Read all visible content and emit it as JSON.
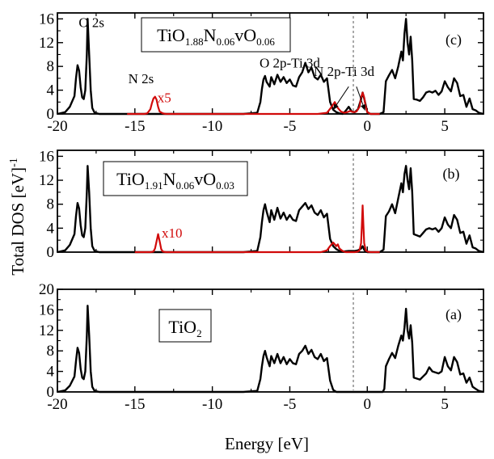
{
  "chart_data": {
    "type": "line",
    "xlabel": "Energy [eV]",
    "ylabel": "Total DOS [eV]",
    "ylabel_superscript": "-1",
    "xlim": [
      -20,
      7.5
    ],
    "xticks": [
      -20,
      -15,
      -10,
      -5,
      0,
      5
    ],
    "fermi_level": -0.9,
    "colors": {
      "total": "#000000",
      "nitrogen": "#d10a0a"
    },
    "panels": [
      {
        "id": "c",
        "tag": "(c)",
        "formula": [
          {
            "t": "TiO",
            "sub": false
          },
          {
            "t": "1.88",
            "sub": true
          },
          {
            "t": "N",
            "sub": false
          },
          {
            "t": "0.06",
            "sub": true
          },
          {
            "t": "vO",
            "sub": false
          },
          {
            "t": "0.06",
            "sub": true
          }
        ],
        "ylim": [
          0,
          17
        ],
        "yticks": [
          0,
          4,
          8,
          12,
          16
        ],
        "yminor": [
          2,
          6,
          10,
          14
        ],
        "annotations": [
          {
            "text": "O 2s",
            "x": -17.8,
            "y": 14.6,
            "color": "#000000"
          },
          {
            "text": "N 2s",
            "x": -14.6,
            "y": 5.2,
            "color": "#000000"
          },
          {
            "text": "x5",
            "x": -13.1,
            "y": 2.0,
            "color": "#d10a0a"
          },
          {
            "text": "O 2p-Ti 3d",
            "x": -5.0,
            "y": 7.8,
            "color": "#000000"
          },
          {
            "text": "N 2p-Ti 3d",
            "x": -1.5,
            "y": 6.4,
            "color": "#000000"
          }
        ],
        "arrows": [
          {
            "from": [
              -1.2,
              4.6
            ],
            "to": [
              -2.2,
              0.7
            ]
          },
          {
            "from": [
              -0.7,
              4.6
            ],
            "to": [
              -0.15,
              0.6
            ]
          }
        ],
        "total_dos": {
          "x": [
            -20,
            -19.5,
            -19.2,
            -18.9,
            -18.8,
            -18.7,
            -18.6,
            -18.5,
            -18.4,
            -18.3,
            -18.2,
            -18.1,
            -18.05,
            -17.95,
            -17.85,
            -17.75,
            -17.6,
            -17.3,
            -16,
            -10,
            -8,
            -7.1,
            -6.9,
            -6.8,
            -6.7,
            -6.6,
            -6.5,
            -6.3,
            -6.2,
            -6.0,
            -5.8,
            -5.6,
            -5.4,
            -5.2,
            -5.0,
            -4.8,
            -4.6,
            -4.4,
            -4.2,
            -4.0,
            -3.8,
            -3.6,
            -3.4,
            -3.2,
            -3.0,
            -2.8,
            -2.6,
            -2.4,
            -2.2,
            -2.0,
            -1.8,
            -1.6,
            -1.4,
            -1.2,
            -1.0,
            -0.8,
            -0.6,
            -0.4,
            -0.3,
            -0.2,
            -0.1,
            0.0,
            0.2,
            0.8,
            1.05,
            1.2,
            1.4,
            1.6,
            1.8,
            2.0,
            2.2,
            2.3,
            2.4,
            2.5,
            2.6,
            2.7,
            2.8,
            2.9,
            3.0,
            3.2,
            3.4,
            3.6,
            3.8,
            4.0,
            4.2,
            4.4,
            4.6,
            4.8,
            5.0,
            5.2,
            5.4,
            5.6,
            5.8,
            6.0,
            6.2,
            6.4,
            6.6,
            6.8,
            7.0,
            7.2,
            7.5
          ],
          "y": [
            0,
            0.3,
            1.2,
            3.0,
            6.0,
            8.2,
            7.3,
            4.5,
            2.8,
            2.5,
            4.0,
            10.0,
            16.0,
            10.0,
            4.0,
            1.0,
            0.2,
            0,
            0,
            0,
            0,
            0.2,
            2.0,
            4.2,
            5.8,
            6.4,
            5.4,
            4.6,
            6.2,
            5.0,
            6.6,
            5.4,
            6.2,
            5.2,
            5.8,
            4.8,
            4.6,
            6.2,
            7.0,
            8.6,
            7.0,
            7.8,
            6.2,
            5.8,
            6.6,
            5.4,
            6.0,
            2.0,
            0.7,
            0.3,
            0.1,
            0.0,
            0.5,
            1.2,
            0.4,
            0.3,
            0.8,
            2.5,
            3.6,
            2.6,
            1.5,
            0.3,
            0,
            0,
            0.3,
            5.5,
            6.5,
            7.4,
            6.0,
            8.0,
            10.5,
            9.0,
            13.5,
            16.0,
            12.0,
            10.0,
            13.0,
            9.0,
            2.5,
            2.4,
            2.2,
            2.8,
            3.6,
            3.8,
            3.6,
            3.9,
            3.2,
            3.8,
            5.5,
            4.5,
            3.8,
            6.0,
            5.2,
            3.0,
            3.2,
            1.2,
            2.6,
            0.8,
            0.6,
            0.2,
            0
          ]
        },
        "n_dos": {
          "x": [
            -15.5,
            -14.4,
            -14.2,
            -14.0,
            -13.9,
            -13.8,
            -13.7,
            -13.6,
            -13.5,
            -13.4,
            -13.2,
            -13.0,
            -12.0,
            -3.2,
            -2.6,
            -2.3,
            -2.1,
            -1.9,
            -1.7,
            -1.5,
            -1.3,
            -1.1,
            -0.9,
            -0.7,
            -0.5,
            -0.4,
            -0.3,
            -0.2,
            -0.1,
            0.0,
            0.2,
            0.8
          ],
          "y": [
            0,
            0,
            0.1,
            0.8,
            1.8,
            2.6,
            2.9,
            2.4,
            1.2,
            0.4,
            0.1,
            0,
            0,
            0,
            0.2,
            1.2,
            2.0,
            1.0,
            0.4,
            0.2,
            0.3,
            0.5,
            0.3,
            0.4,
            1.2,
            2.8,
            3.6,
            2.8,
            1.2,
            0.3,
            0,
            0
          ]
        }
      },
      {
        "id": "b",
        "tag": "(b)",
        "formula": [
          {
            "t": "TiO",
            "sub": false
          },
          {
            "t": "1.91",
            "sub": true
          },
          {
            "t": "N",
            "sub": false
          },
          {
            "t": "0.06",
            "sub": true
          },
          {
            "t": "vO",
            "sub": false
          },
          {
            "t": "0.03",
            "sub": true
          }
        ],
        "ylim": [
          0,
          17
        ],
        "yticks": [
          0,
          4,
          8,
          12,
          16
        ],
        "yminor": [
          2,
          6,
          10,
          14
        ],
        "annotations": [
          {
            "text": "x10",
            "x": -12.6,
            "y": 2.4,
            "color": "#d10a0a"
          }
        ],
        "arrows": [],
        "total_dos": {
          "x": [
            -20,
            -19.5,
            -19.2,
            -18.9,
            -18.8,
            -18.7,
            -18.6,
            -18.5,
            -18.4,
            -18.3,
            -18.2,
            -18.1,
            -18.05,
            -17.95,
            -17.85,
            -17.75,
            -17.6,
            -17.3,
            -16,
            -10,
            -8,
            -7.1,
            -6.9,
            -6.8,
            -6.7,
            -6.6,
            -6.5,
            -6.3,
            -6.2,
            -6.0,
            -5.8,
            -5.6,
            -5.4,
            -5.2,
            -5.0,
            -4.8,
            -4.6,
            -4.4,
            -4.2,
            -4.0,
            -3.8,
            -3.6,
            -3.4,
            -3.2,
            -3.0,
            -2.8,
            -2.6,
            -2.4,
            -2.2,
            -2.0,
            -1.8,
            -1.6,
            -1.2,
            -0.8,
            -0.6,
            -0.4,
            -0.3,
            -0.2,
            -0.1,
            0.0,
            0.2,
            0.8,
            1.05,
            1.2,
            1.4,
            1.6,
            1.8,
            2.0,
            2.2,
            2.3,
            2.4,
            2.5,
            2.6,
            2.7,
            2.8,
            2.9,
            3.0,
            3.2,
            3.4,
            3.6,
            3.8,
            4.0,
            4.2,
            4.4,
            4.6,
            4.8,
            5.0,
            5.2,
            5.4,
            5.6,
            5.8,
            6.0,
            6.2,
            6.4,
            6.6,
            6.8,
            7.0,
            7.2,
            7.5
          ],
          "y": [
            0,
            0.3,
            1.2,
            3.0,
            6.0,
            8.2,
            7.3,
            4.5,
            2.8,
            2.5,
            4.0,
            10.0,
            14.4,
            10.0,
            4.0,
            1.0,
            0.2,
            0,
            0,
            0,
            0,
            0.2,
            2.5,
            5.0,
            7.0,
            8.0,
            6.8,
            5.0,
            7.0,
            5.4,
            7.4,
            5.6,
            6.6,
            5.4,
            6.2,
            5.4,
            5.2,
            7.0,
            7.6,
            8.2,
            7.2,
            7.8,
            6.6,
            6.2,
            7.0,
            5.8,
            6.4,
            2.2,
            1.0,
            0.5,
            0.2,
            0.1,
            0.2,
            0.2,
            0.3,
            0.6,
            1.0,
            0.4,
            0.1,
            0,
            0,
            0,
            0.4,
            6.0,
            6.8,
            8.0,
            6.5,
            9.0,
            11.5,
            10.0,
            13.0,
            14.4,
            12.0,
            10.5,
            14.0,
            10.0,
            3.0,
            2.8,
            2.6,
            3.2,
            3.8,
            4.0,
            3.8,
            4.0,
            3.4,
            4.0,
            5.8,
            4.6,
            4.0,
            6.2,
            5.4,
            3.2,
            3.4,
            1.4,
            2.8,
            0.8,
            0.6,
            0.2,
            0
          ]
        },
        "n_dos": {
          "x": [
            -15.0,
            -14.0,
            -13.8,
            -13.7,
            -13.6,
            -13.5,
            -13.4,
            -13.3,
            -13.2,
            -13.0,
            -12.0,
            -3.0,
            -2.6,
            -2.4,
            -2.2,
            -2.0,
            -1.9,
            -1.8,
            -1.6,
            -1.4,
            -1.2,
            -1.0,
            -0.8,
            -0.6,
            -0.5,
            -0.4,
            -0.35,
            -0.3,
            -0.25,
            -0.2,
            -0.1,
            0.0,
            0.2,
            0.8
          ],
          "y": [
            0,
            0,
            0.1,
            0.6,
            1.8,
            3.0,
            1.8,
            0.5,
            0.1,
            0,
            0,
            0,
            0.3,
            1.0,
            1.6,
            1.0,
            1.3,
            0.6,
            0.2,
            0,
            0,
            0,
            0,
            0.1,
            0.3,
            1.5,
            4.5,
            7.8,
            4.5,
            1.5,
            0.3,
            0.1,
            0,
            0
          ]
        }
      },
      {
        "id": "a",
        "tag": "(a)",
        "formula": [
          {
            "t": "TiO",
            "sub": false
          },
          {
            "t": "2",
            "sub": true
          }
        ],
        "ylim": [
          0,
          20
        ],
        "yticks": [
          0,
          4,
          8,
          12,
          16,
          20
        ],
        "yminor": [
          2,
          6,
          10,
          14,
          18
        ],
        "annotations": [],
        "arrows": [],
        "total_dos": {
          "x": [
            -20,
            -19.5,
            -19.2,
            -18.9,
            -18.8,
            -18.7,
            -18.6,
            -18.5,
            -18.4,
            -18.3,
            -18.2,
            -18.1,
            -18.05,
            -17.95,
            -17.85,
            -17.75,
            -17.6,
            -17.3,
            -16,
            -10,
            -8,
            -7.1,
            -6.9,
            -6.8,
            -6.7,
            -6.6,
            -6.5,
            -6.3,
            -6.2,
            -6.0,
            -5.8,
            -5.6,
            -5.4,
            -5.2,
            -5.0,
            -4.8,
            -4.6,
            -4.4,
            -4.2,
            -4.0,
            -3.8,
            -3.6,
            -3.4,
            -3.2,
            -3.0,
            -2.8,
            -2.6,
            -2.4,
            -2.2,
            -2.0,
            -1.8,
            -1.0,
            0.0,
            1.0,
            1.1,
            1.2,
            1.4,
            1.6,
            1.8,
            2.0,
            2.2,
            2.3,
            2.4,
            2.5,
            2.6,
            2.7,
            2.8,
            2.9,
            3.0,
            3.2,
            3.4,
            3.6,
            3.8,
            4.0,
            4.2,
            4.4,
            4.6,
            4.8,
            5.0,
            5.2,
            5.4,
            5.6,
            5.8,
            6.0,
            6.2,
            6.4,
            6.6,
            6.8,
            7.0,
            7.2,
            7.5
          ],
          "y": [
            0,
            0.3,
            1.2,
            3.0,
            6.0,
            8.6,
            7.6,
            4.5,
            2.8,
            2.5,
            4.0,
            11.0,
            16.8,
            11.0,
            4.0,
            1.0,
            0.2,
            0,
            0,
            0,
            0,
            0.2,
            2.5,
            5.0,
            7.0,
            8.0,
            6.8,
            5.0,
            7.0,
            5.6,
            7.4,
            5.6,
            6.8,
            5.4,
            6.4,
            5.6,
            5.4,
            7.4,
            8.0,
            9.0,
            7.4,
            8.2,
            6.8,
            6.4,
            7.4,
            6.0,
            6.6,
            2.2,
            0.4,
            0,
            0,
            0,
            0,
            0,
            0.6,
            5.0,
            6.4,
            7.6,
            6.6,
            9.0,
            11.0,
            10.0,
            12.5,
            16.2,
            12.0,
            10.4,
            13.0,
            9.6,
            2.8,
            2.6,
            2.4,
            3.0,
            3.6,
            4.8,
            4.0,
            3.8,
            3.6,
            4.0,
            6.8,
            5.0,
            4.2,
            6.8,
            5.8,
            3.4,
            3.6,
            1.8,
            2.8,
            1.0,
            0.6,
            0.2,
            0
          ]
        },
        "n_dos": {
          "x": [],
          "y": []
        }
      }
    ]
  }
}
